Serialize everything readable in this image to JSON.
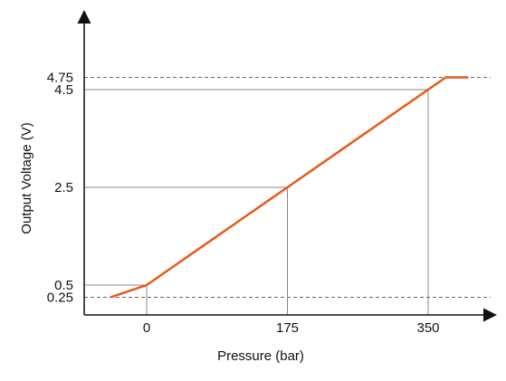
{
  "chart_data": {
    "type": "line",
    "title": "",
    "xlabel": "Pressure (bar)",
    "ylabel": "Output Voltage (V)",
    "xlim": [
      -80,
      400
    ],
    "ylim": [
      0,
      5.3
    ],
    "x_ticks": [
      {
        "value": 0,
        "label": "0"
      },
      {
        "value": 175,
        "label": "175"
      },
      {
        "value": 350,
        "label": "350"
      }
    ],
    "y_ticks": [
      {
        "value": 0.25,
        "label": "0.25"
      },
      {
        "value": 0.5,
        "label": "0.5"
      },
      {
        "value": 2.5,
        "label": "2.5"
      },
      {
        "value": 4.5,
        "label": "4.5"
      },
      {
        "value": 4.75,
        "label": "4.75"
      }
    ],
    "series": [
      {
        "color": "#e8581c",
        "points": [
          {
            "x": -45,
            "y": 0.25
          },
          {
            "x": 0,
            "y": 0.5
          },
          {
            "x": 175,
            "y": 2.5
          },
          {
            "x": 350,
            "y": 4.5
          },
          {
            "x": 372,
            "y": 4.75
          },
          {
            "x": 400,
            "y": 4.75
          }
        ]
      }
    ],
    "reference_lines": [
      {
        "value": 0.25,
        "style": "dashed",
        "span": "full"
      },
      {
        "value": 4.75,
        "style": "dashed",
        "span": "full"
      }
    ],
    "guide_lines": [
      {
        "x": 0,
        "y": 0.5
      },
      {
        "x": 175,
        "y": 2.5
      },
      {
        "x": 350,
        "y": 4.5
      }
    ],
    "grid": false,
    "legend": "none"
  }
}
